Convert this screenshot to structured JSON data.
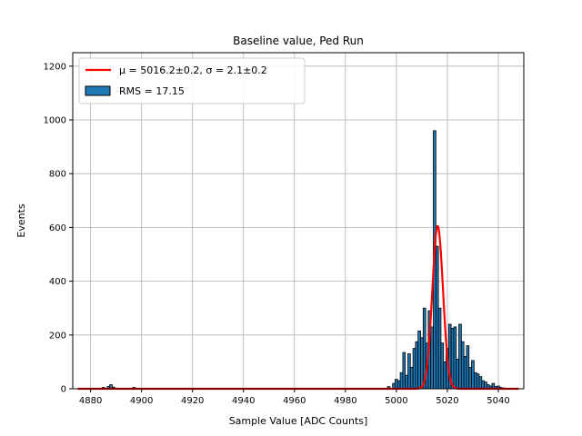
{
  "chart_data": {
    "type": "bar",
    "title": "Baseline value, Ped Run",
    "xlabel": "Sample Value [ADC Counts]",
    "ylabel": "Events",
    "xlim": [
      4873,
      5050
    ],
    "ylim": [
      0,
      1250
    ],
    "xticks": [
      4880,
      4900,
      4920,
      4940,
      4960,
      4980,
      5000,
      5020,
      5040
    ],
    "yticks": [
      0,
      200,
      400,
      600,
      800,
      1000,
      1200
    ],
    "grid": true,
    "legend_placement": "top-left",
    "bin_width": 1,
    "series": [
      {
        "name": "RMS = 17.15",
        "kind": "histogram",
        "color": "#1f77b4",
        "edgecolor": "#000000",
        "x": [
          4885,
          4887,
          4888,
          4889,
          4897,
          4997,
          4999,
          5000,
          5001,
          5002,
          5003,
          5004,
          5005,
          5006,
          5007,
          5008,
          5009,
          5010,
          5011,
          5012,
          5013,
          5014,
          5015,
          5016,
          5017,
          5018,
          5019,
          5020,
          5021,
          5022,
          5023,
          5024,
          5025,
          5026,
          5027,
          5028,
          5029,
          5030,
          5031,
          5032,
          5033,
          5034,
          5035,
          5036,
          5037,
          5038,
          5039,
          5040,
          5041,
          5042
        ],
        "values": [
          5,
          8,
          15,
          6,
          5,
          8,
          20,
          35,
          30,
          60,
          135,
          50,
          130,
          80,
          150,
          175,
          215,
          190,
          300,
          170,
          290,
          230,
          960,
          530,
          300,
          170,
          100,
          150,
          240,
          225,
          230,
          110,
          240,
          175,
          120,
          160,
          80,
          105,
          60,
          55,
          45,
          30,
          25,
          15,
          10,
          20,
          8,
          10,
          5,
          3
        ]
      },
      {
        "name": "μ = 5016.2±0.2, σ = 2.1±0.2",
        "kind": "gaussian-fit",
        "color": "#ff0000",
        "mu": 5016.2,
        "sigma": 2.1,
        "amplitude": 605,
        "x_range": [
          4875,
          5048
        ]
      }
    ],
    "legend": [
      {
        "label_math": "μ = 5016.2±0.2, σ = 2.1±0.2",
        "kind": "line",
        "color": "#ff0000"
      },
      {
        "label": "RMS = 17.15",
        "kind": "patch",
        "color": "#1f77b4"
      }
    ]
  }
}
